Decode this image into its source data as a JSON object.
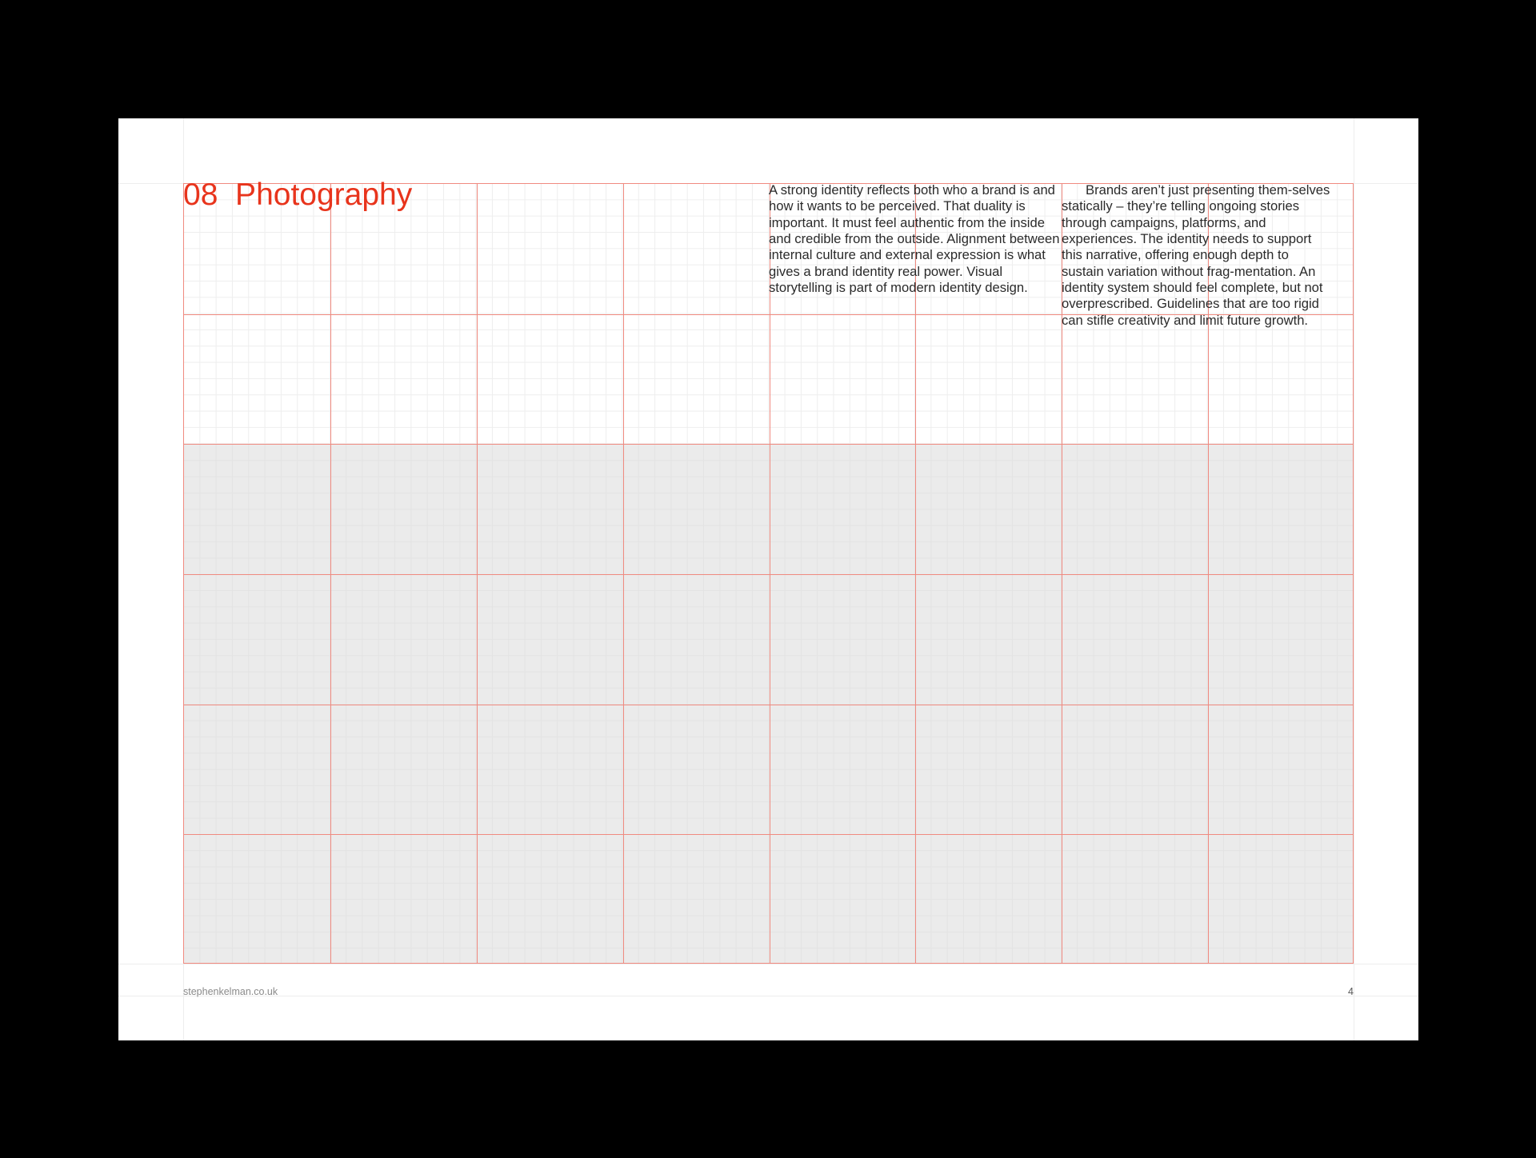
{
  "section": {
    "number": "08",
    "title": "Photography",
    "heading": "08  Photography"
  },
  "body": {
    "column_1": "A strong identity reflects both who a brand is and how it wants to be perceived. That duality is important. It must feel authentic from the inside and credible from the outside. Alignment between internal culture and external expression is what gives a brand identity real power. Visual storytelling is part of modern identity design.",
    "column_2": "Brands aren’t just presenting them-selves statically – they’re telling ongoing stories through campaigns, platforms, and experiences. The identity needs to support this narrative, offering enough depth to sustain variation without frag-mentation. An identity system should feel complete, but not overprescribed. Guidelines that are too rigid can stifle creativity and limit future growth."
  },
  "footer": {
    "website": "stephenkelman.co.uk",
    "page_number": "4"
  },
  "colors": {
    "accent": "#e8341c",
    "grid_major": "#f08a80",
    "image_placeholder": "#ebebeb"
  },
  "grid": {
    "columns": 8,
    "rows": 6,
    "image_area_rows": 4
  }
}
